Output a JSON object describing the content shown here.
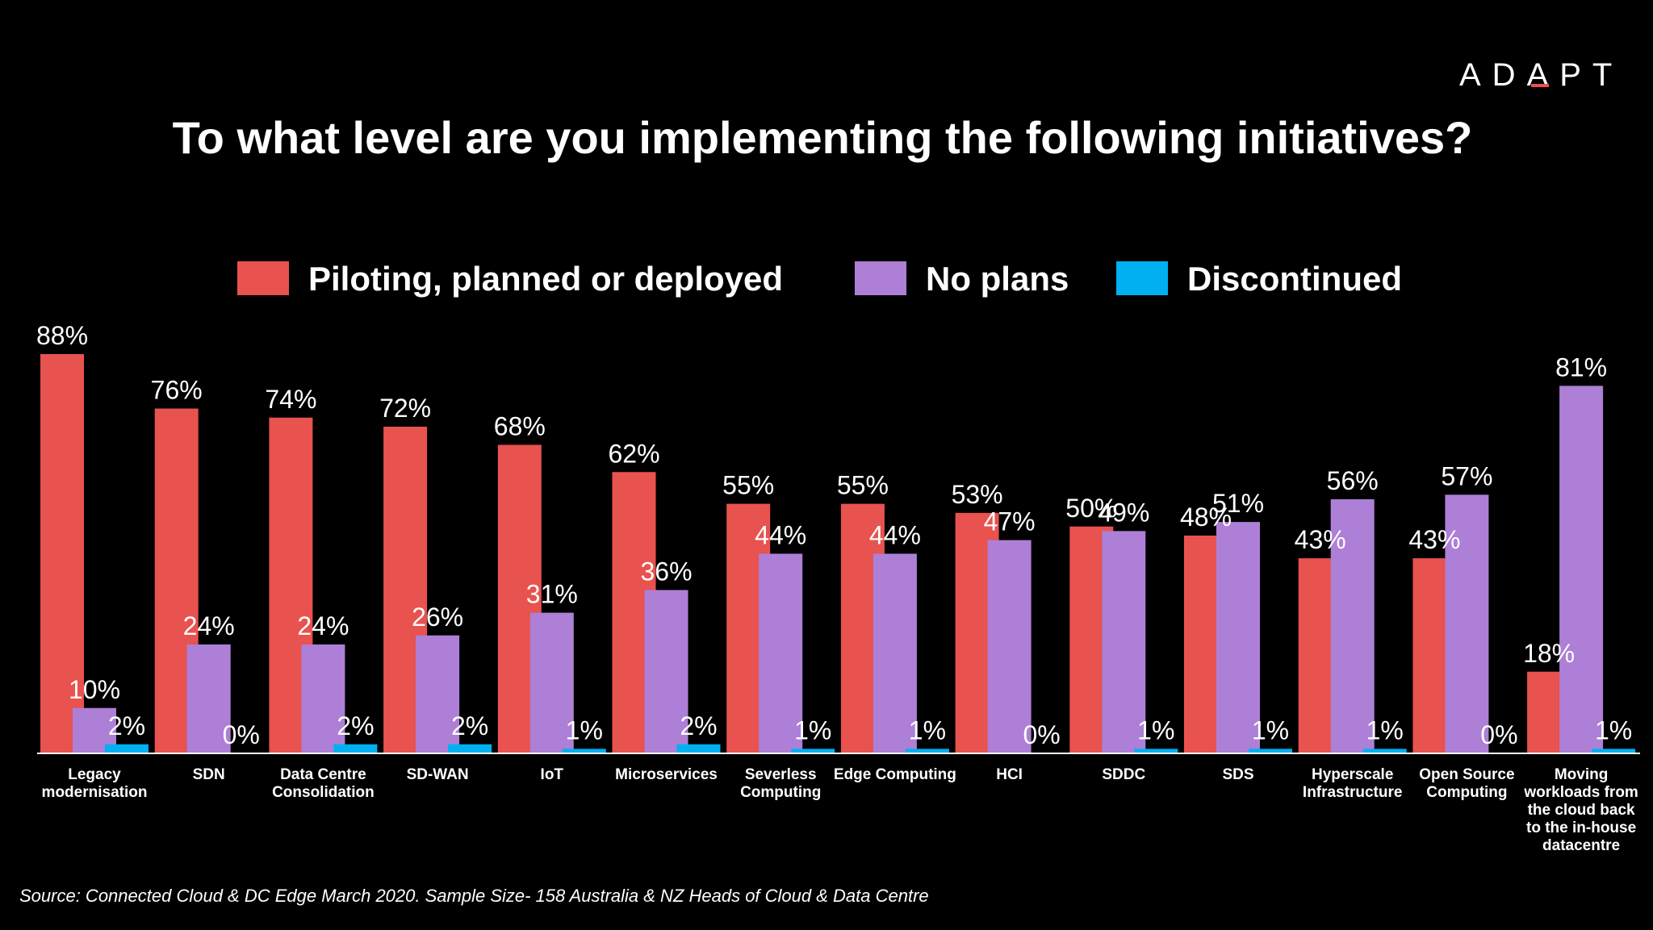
{
  "logo": {
    "text": "ADAPT",
    "accent_color": "#e8524f"
  },
  "chart_data": {
    "type": "bar",
    "title": "To what level are you implementing the following initiatives?",
    "xlabel": "",
    "ylabel": "",
    "ylim": [
      0,
      100
    ],
    "grid": false,
    "legend_position": "top",
    "value_suffix": "%",
    "categories": [
      "Legacy modernisation",
      "SDN",
      "Data Centre Consolidation",
      "SD-WAN",
      "IoT",
      "Microservices",
      "Severless Computing",
      "Edge Computing",
      "HCI",
      "SDDC",
      "SDS",
      "Hyperscale Infrastructure",
      "Open Source Computing",
      "Moving workloads from the cloud back to the in-house datacentre"
    ],
    "series": [
      {
        "name": "Piloting, planned or deployed",
        "color": "#e8524f",
        "values": [
          88,
          76,
          74,
          72,
          68,
          62,
          55,
          55,
          53,
          50,
          48,
          43,
          43,
          18
        ]
      },
      {
        "name": "No plans",
        "color": "#ad7fd6",
        "values": [
          10,
          24,
          24,
          26,
          31,
          36,
          44,
          44,
          47,
          49,
          51,
          56,
          57,
          81
        ]
      },
      {
        "name": "Discontinued",
        "color": "#00b0f0",
        "values": [
          2,
          0,
          2,
          2,
          1,
          2,
          1,
          1,
          0,
          1,
          1,
          1,
          0,
          1
        ]
      }
    ]
  },
  "source": "Source: Connected Cloud & DC Edge March 2020. Sample Size- 158 Australia & NZ Heads of Cloud & Data Centre"
}
